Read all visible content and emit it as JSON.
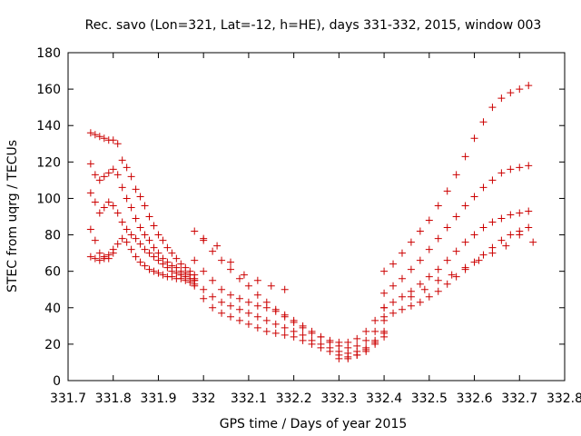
{
  "chart_data": {
    "type": "scatter",
    "title": "Rec. savo (Lon=321, Lat=-12, h=HE), days 331-332, 2015, window 003",
    "xlabel": "GPS time / Days of year 2015",
    "ylabel": "STEC from uqrg / TECUs",
    "xlim": [
      331.7,
      332.8
    ],
    "ylim": [
      0,
      180
    ],
    "xticks": [
      331.7,
      331.8,
      331.9,
      332.0,
      332.1,
      332.2,
      332.3,
      332.4,
      332.5,
      332.6,
      332.7,
      332.8
    ],
    "xtick_labels": [
      "331.7",
      "331.8",
      "331.9",
      "332",
      "332.1",
      "332.2",
      "332.3",
      "332.4",
      "332.5",
      "332.6",
      "332.7",
      "332.8"
    ],
    "yticks": [
      0,
      20,
      40,
      60,
      80,
      100,
      120,
      140,
      160,
      180
    ],
    "ytick_labels": [
      "0",
      "20",
      "40",
      "60",
      "80",
      "100",
      "120",
      "140",
      "160",
      "180"
    ],
    "grid": false,
    "legend": "none",
    "marker": "plus",
    "color": "#cc0000",
    "series": [
      {
        "x": [
          331.75,
          331.76,
          331.77,
          331.78,
          331.79,
          331.8,
          331.81,
          331.82,
          331.83,
          331.84,
          331.85,
          331.86,
          331.87,
          331.88,
          331.89,
          331.9,
          331.91,
          331.92,
          331.93,
          331.94,
          331.95,
          331.96,
          331.97,
          331.98
        ],
        "y": [
          136,
          135,
          134,
          133,
          132,
          132,
          130,
          121,
          117,
          112,
          105,
          101,
          96,
          90,
          85,
          80,
          77,
          73,
          70,
          67,
          64,
          62,
          60,
          58
        ]
      },
      {
        "x": [
          331.75,
          331.76,
          331.77,
          331.78,
          331.79,
          331.8,
          331.81,
          331.82,
          331.83,
          331.84,
          331.85,
          331.86,
          331.87,
          331.88,
          331.89,
          331.9,
          331.91,
          331.92,
          331.93,
          331.94,
          331.95,
          331.96,
          331.97,
          331.98
        ],
        "y": [
          119,
          113,
          110,
          112,
          114,
          116,
          113,
          106,
          100,
          95,
          89,
          84,
          80,
          77,
          73,
          70,
          67,
          65,
          63,
          62,
          60,
          59,
          58,
          56
        ]
      },
      {
        "x": [
          331.75,
          331.76,
          331.77,
          331.78,
          331.79,
          331.8,
          331.81,
          331.82,
          331.83,
          331.84,
          331.85,
          331.86,
          331.87,
          331.88,
          331.89,
          331.9,
          331.91,
          331.92,
          331.93,
          331.94,
          331.95,
          331.96,
          331.97,
          331.98
        ],
        "y": [
          103,
          98,
          92,
          95,
          98,
          96,
          92,
          87,
          83,
          80,
          78,
          75,
          72,
          70,
          68,
          66,
          64,
          62,
          60,
          59,
          58,
          57,
          56,
          55
        ]
      },
      {
        "x": [
          331.75,
          331.76,
          331.77,
          331.78,
          331.79,
          331.8,
          331.81,
          331.82,
          331.83,
          331.84,
          331.85,
          331.86,
          331.87,
          331.88,
          331.89,
          331.9,
          331.91,
          331.92,
          331.93,
          331.94,
          331.95,
          331.96,
          331.97,
          331.98
        ],
        "y": [
          83,
          77,
          70,
          68,
          67,
          70,
          75,
          78,
          76,
          72,
          68,
          65,
          63,
          61,
          60,
          59,
          58,
          57,
          57,
          56,
          56,
          55,
          54,
          53
        ]
      },
      {
        "x": [
          331.75,
          331.76,
          331.77,
          331.78,
          331.79,
          331.8
        ],
        "y": [
          68,
          67,
          66,
          67,
          69,
          72
        ]
      },
      {
        "x": [
          331.98,
          332.0,
          332.02,
          332.04,
          332.06,
          332.08,
          332.1,
          332.12,
          332.14,
          332.16,
          332.18,
          332.2,
          332.22,
          332.24,
          332.26,
          332.28,
          332.3,
          332.32,
          332.34,
          332.36,
          332.38,
          332.4
        ],
        "y": [
          82,
          77,
          71,
          66,
          61,
          56,
          52,
          47,
          43,
          39,
          35,
          32,
          29,
          26,
          24,
          22,
          21,
          21,
          23,
          27,
          33,
          40
        ]
      },
      {
        "x": [
          331.98,
          332.0,
          332.02,
          332.04,
          332.06,
          332.08,
          332.1,
          332.12,
          332.14,
          332.16,
          332.18,
          332.2,
          332.22,
          332.24,
          332.26,
          332.28,
          332.3,
          332.32,
          332.34,
          332.36,
          332.38,
          332.4
        ],
        "y": [
          66,
          60,
          55,
          50,
          47,
          45,
          43,
          41,
          40,
          38,
          36,
          33,
          30,
          27,
          24,
          21,
          19,
          18,
          19,
          22,
          27,
          33
        ]
      },
      {
        "x": [
          331.98,
          332.0,
          332.02,
          332.04,
          332.06,
          332.08,
          332.1,
          332.12,
          332.14,
          332.16,
          332.18,
          332.2,
          332.22,
          332.24,
          332.26,
          332.28,
          332.3,
          332.32,
          332.34,
          332.36,
          332.38,
          332.4
        ],
        "y": [
          55,
          50,
          46,
          43,
          41,
          39,
          37,
          35,
          33,
          31,
          29,
          27,
          25,
          22,
          20,
          18,
          16,
          15,
          16,
          18,
          22,
          27
        ]
      },
      {
        "x": [
          331.98,
          332.0,
          332.02,
          332.04,
          332.06,
          332.08,
          332.1,
          332.12,
          332.14,
          332.16,
          332.18,
          332.2,
          332.22,
          332.24,
          332.26,
          332.28,
          332.3,
          332.32,
          332.34,
          332.36,
          332.38,
          332.4
        ],
        "y": [
          52,
          45,
          40,
          37,
          35,
          33,
          31,
          29,
          27,
          26,
          25,
          24,
          22,
          20,
          18,
          16,
          14,
          13,
          14,
          16,
          20,
          24
        ]
      },
      {
        "x": [
          332.0,
          332.03,
          332.06,
          332.09,
          332.12,
          332.15,
          332.18
        ],
        "y": [
          78,
          74,
          65,
          58,
          55,
          52,
          50
        ]
      },
      {
        "x": [
          332.3,
          332.32,
          332.34,
          332.36,
          332.38,
          332.4
        ],
        "y": [
          12,
          12,
          14,
          17,
          21,
          26
        ]
      },
      {
        "x": [
          332.4,
          332.42,
          332.44,
          332.46,
          332.48,
          332.5,
          332.52,
          332.54,
          332.56,
          332.58,
          332.6,
          332.62,
          332.64,
          332.66,
          332.68,
          332.7,
          332.72
        ],
        "y": [
          60,
          64,
          70,
          76,
          82,
          88,
          96,
          104,
          113,
          123,
          133,
          142,
          150,
          155,
          158,
          160,
          162
        ]
      },
      {
        "x": [
          332.4,
          332.42,
          332.44,
          332.46,
          332.48,
          332.5,
          332.52,
          332.54,
          332.56,
          332.58,
          332.6,
          332.62,
          332.64,
          332.66,
          332.68,
          332.7,
          332.72
        ],
        "y": [
          48,
          52,
          56,
          61,
          66,
          72,
          78,
          84,
          90,
          96,
          101,
          106,
          110,
          114,
          116,
          117,
          118
        ]
      },
      {
        "x": [
          332.4,
          332.42,
          332.44,
          332.46,
          332.48,
          332.5,
          332.52,
          332.54,
          332.56,
          332.58,
          332.6,
          332.62,
          332.64,
          332.66,
          332.68,
          332.7,
          332.72
        ],
        "y": [
          40,
          43,
          46,
          49,
          53,
          57,
          61,
          66,
          71,
          76,
          80,
          84,
          87,
          89,
          91,
          92,
          93
        ]
      },
      {
        "x": [
          332.4,
          332.42,
          332.44,
          332.46,
          332.48,
          332.5,
          332.52,
          332.54,
          332.56,
          332.58,
          332.6,
          332.62,
          332.64,
          332.66,
          332.68,
          332.7,
          332.72
        ],
        "y": [
          35,
          37,
          39,
          41,
          43,
          46,
          49,
          53,
          57,
          61,
          65,
          69,
          73,
          77,
          80,
          82,
          84
        ]
      },
      {
        "x": [
          332.46,
          332.49,
          332.52,
          332.55,
          332.58,
          332.61,
          332.64,
          332.67,
          332.7,
          332.73
        ],
        "y": [
          46,
          50,
          55,
          58,
          62,
          66,
          70,
          74,
          80,
          76
        ]
      }
    ]
  }
}
